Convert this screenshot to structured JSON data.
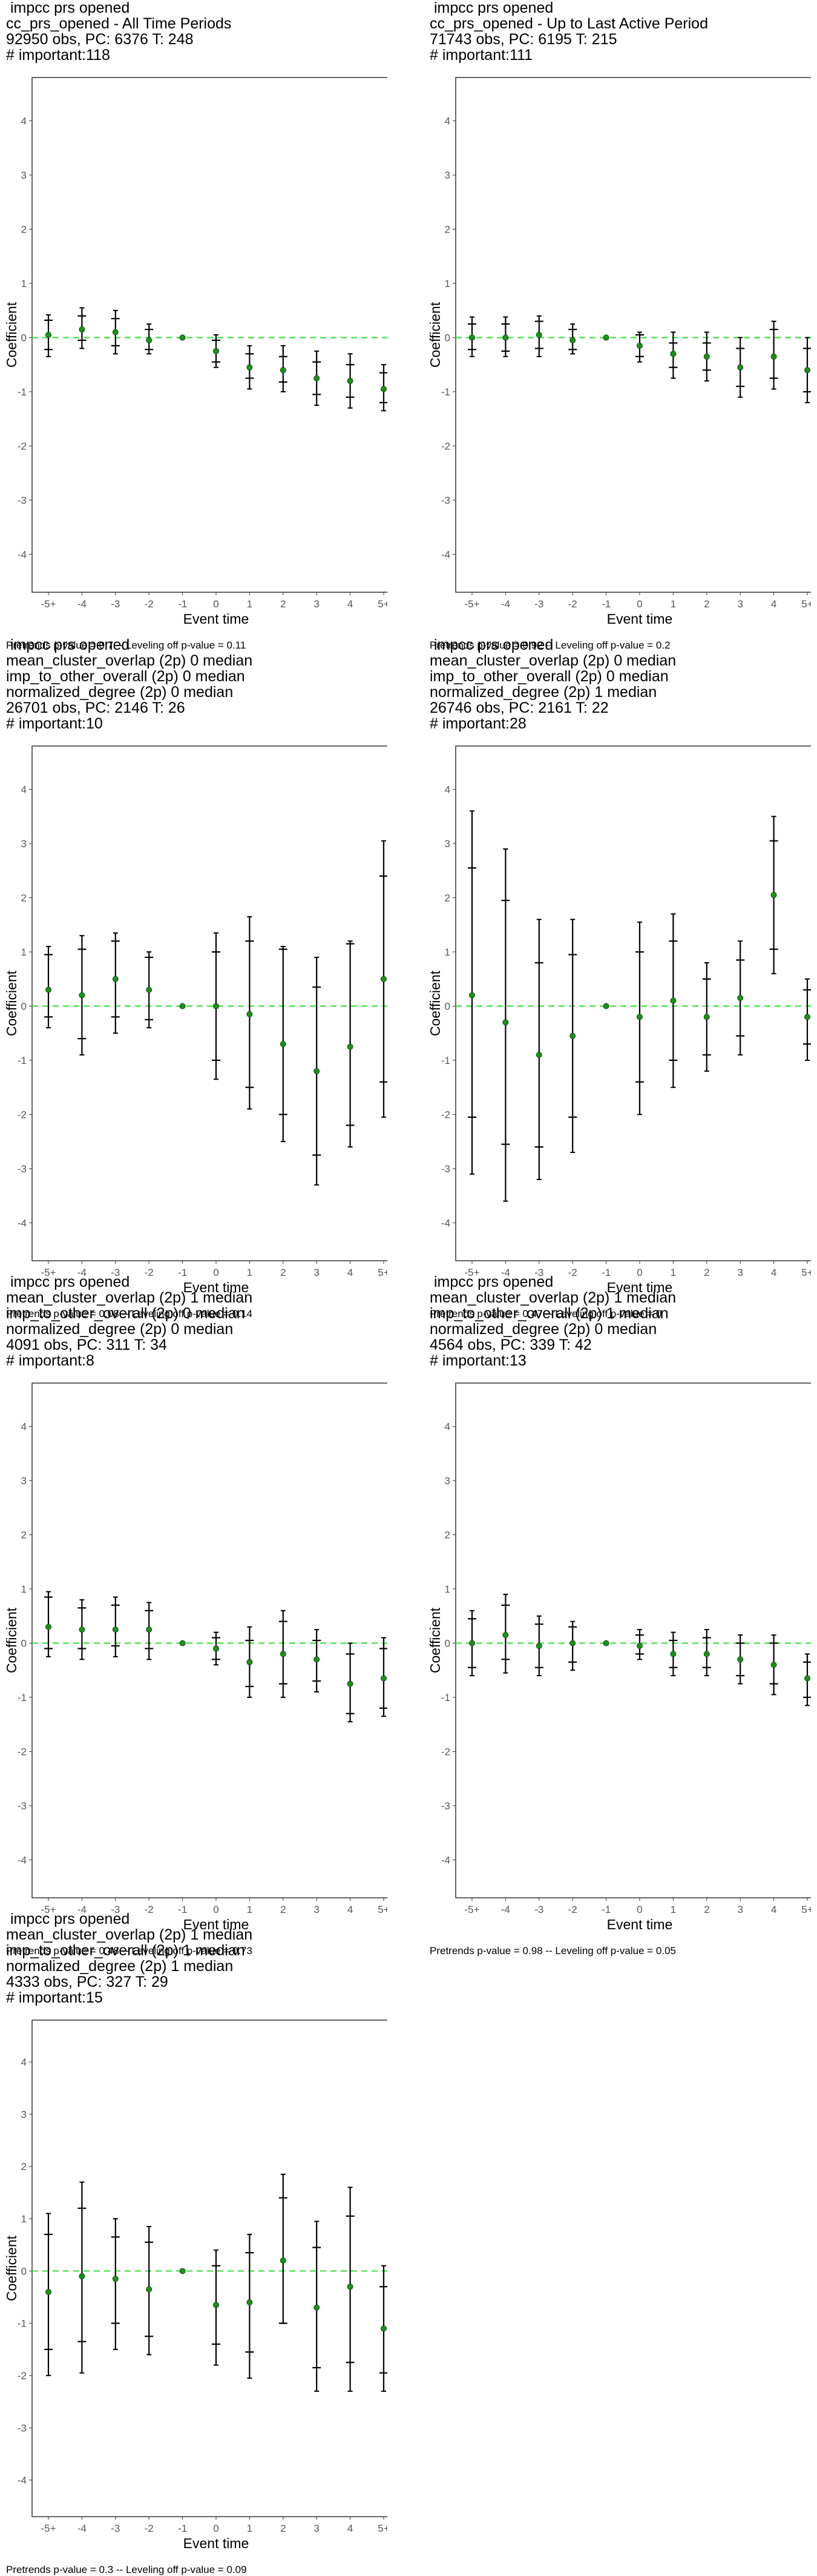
{
  "chart_data": [
    {
      "type": "scatter",
      "title_lines": [
        " impcc prs opened",
        "cc_prs_opened - All Time Periods",
        "92950 obs, PC: 6376 T: 248",
        "# important:118"
      ],
      "xlabel": "Event time",
      "ylabel": "Coefficient",
      "categories": [
        "-5+",
        "-4",
        "-3",
        "-2",
        "-1",
        "0",
        "1",
        "2",
        "3",
        "4",
        "5+"
      ],
      "ylim": [
        -4.7,
        4.8
      ],
      "yticks": [
        -4,
        -3,
        -2,
        -1,
        0,
        1,
        2,
        3,
        4
      ],
      "grid": false,
      "estimate": [
        0.05,
        0.15,
        0.1,
        -0.05,
        0.0,
        -0.25,
        -0.55,
        -0.6,
        -0.75,
        -0.8,
        -0.95
      ],
      "ci_inner": [
        [
          -0.22,
          0.32
        ],
        [
          -0.05,
          0.4
        ],
        [
          -0.15,
          0.35
        ],
        [
          -0.22,
          0.15
        ],
        [
          0.0,
          0.0
        ],
        [
          -0.45,
          -0.05
        ],
        [
          -0.75,
          -0.3
        ],
        [
          -0.82,
          -0.35
        ],
        [
          -1.05,
          -0.45
        ],
        [
          -1.1,
          -0.5
        ],
        [
          -1.2,
          -0.65
        ]
      ],
      "ci_outer": [
        [
          -0.35,
          0.42
        ],
        [
          -0.2,
          0.55
        ],
        [
          -0.3,
          0.5
        ],
        [
          -0.3,
          0.25
        ],
        [
          0.0,
          0.0
        ],
        [
          -0.55,
          0.05
        ],
        [
          -0.95,
          -0.15
        ],
        [
          -1.0,
          -0.15
        ],
        [
          -1.25,
          -0.25
        ],
        [
          -1.3,
          -0.3
        ],
        [
          -1.35,
          -0.5
        ]
      ],
      "caption": "Pretrends p-value = 0.7 -- Leveling off p-value = 0.11"
    },
    {
      "type": "scatter",
      "title_lines": [
        " impcc prs opened",
        "cc_prs_opened - Up to Last Active Period",
        "71743 obs, PC: 6195 T: 215",
        "# important:111"
      ],
      "xlabel": "Event time",
      "ylabel": "Coefficient",
      "categories": [
        "-5+",
        "-4",
        "-3",
        "-2",
        "-1",
        "0",
        "1",
        "2",
        "3",
        "4",
        "5+"
      ],
      "ylim": [
        -4.7,
        4.8
      ],
      "yticks": [
        -4,
        -3,
        -2,
        -1,
        0,
        1,
        2,
        3,
        4
      ],
      "grid": false,
      "estimate": [
        0.0,
        0.0,
        0.05,
        -0.05,
        0.0,
        -0.15,
        -0.3,
        -0.35,
        -0.55,
        -0.35,
        -0.6
      ],
      "ci_inner": [
        [
          -0.22,
          0.25
        ],
        [
          -0.25,
          0.25
        ],
        [
          -0.2,
          0.3
        ],
        [
          -0.22,
          0.15
        ],
        [
          0.0,
          0.0
        ],
        [
          -0.35,
          0.05
        ],
        [
          -0.55,
          -0.1
        ],
        [
          -0.6,
          -0.1
        ],
        [
          -0.9,
          -0.2
        ],
        [
          -0.75,
          0.15
        ],
        [
          -1.0,
          -0.2
        ]
      ],
      "ci_outer": [
        [
          -0.35,
          0.38
        ],
        [
          -0.35,
          0.38
        ],
        [
          -0.35,
          0.4
        ],
        [
          -0.3,
          0.25
        ],
        [
          0.0,
          0.0
        ],
        [
          -0.45,
          0.1
        ],
        [
          -0.75,
          0.1
        ],
        [
          -0.8,
          0.1
        ],
        [
          -1.1,
          0.0
        ],
        [
          -0.95,
          0.3
        ],
        [
          -1.2,
          0.0
        ]
      ],
      "caption": "Pretrends p-value = 0.92 -- Leveling off p-value = 0.2"
    },
    {
      "type": "scatter",
      "title_lines": [
        " impcc prs opened",
        "mean_cluster_overlap (2p) 0 median",
        "imp_to_other_overall (2p) 0 median",
        "normalized_degree (2p) 0 median",
        "26701 obs, PC: 2146 T: 26",
        "# important:10"
      ],
      "xlabel": "Event time",
      "ylabel": "Coefficient",
      "categories": [
        "-5+",
        "-4",
        "-3",
        "-2",
        "-1",
        "0",
        "1",
        "2",
        "3",
        "4",
        "5+"
      ],
      "ylim": [
        -4.7,
        4.8
      ],
      "yticks": [
        -4,
        -3,
        -2,
        -1,
        0,
        1,
        2,
        3,
        4
      ],
      "grid": false,
      "estimate": [
        0.3,
        0.2,
        0.5,
        0.3,
        0.0,
        0.0,
        -0.15,
        -0.7,
        -1.2,
        -0.75,
        0.5
      ],
      "ci_inner": [
        [
          -0.2,
          0.95
        ],
        [
          -0.6,
          1.05
        ],
        [
          -0.2,
          1.2
        ],
        [
          -0.25,
          0.9
        ],
        [
          0.0,
          0.0
        ],
        [
          -1.0,
          1.0
        ],
        [
          -1.5,
          1.2
        ],
        [
          -2.0,
          1.05
        ],
        [
          -2.75,
          0.35
        ],
        [
          -2.2,
          1.15
        ],
        [
          -1.4,
          2.4
        ]
      ],
      "ci_outer": [
        [
          -0.4,
          1.1
        ],
        [
          -0.9,
          1.3
        ],
        [
          -0.5,
          1.35
        ],
        [
          -0.4,
          1.0
        ],
        [
          0.0,
          0.0
        ],
        [
          -1.35,
          1.35
        ],
        [
          -1.9,
          1.65
        ],
        [
          -2.5,
          1.1
        ],
        [
          -3.3,
          0.9
        ],
        [
          -2.6,
          1.2
        ],
        [
          -2.05,
          3.05
        ]
      ],
      "caption": "Pretrends p-value = 0.08 -- Leveling off p-value = 0.14"
    },
    {
      "type": "scatter",
      "title_lines": [
        " impcc prs opened",
        "mean_cluster_overlap (2p) 0 median",
        "imp_to_other_overall (2p) 0 median",
        "normalized_degree (2p) 1 median",
        "26746 obs, PC: 2161 T: 22",
        "# important:28"
      ],
      "xlabel": "Event time",
      "ylabel": "Coefficient",
      "categories": [
        "-5+",
        "-4",
        "-3",
        "-2",
        "-1",
        "0",
        "1",
        "2",
        "3",
        "4",
        "5+"
      ],
      "ylim": [
        -4.7,
        4.8
      ],
      "yticks": [
        -4,
        -3,
        -2,
        -1,
        0,
        1,
        2,
        3,
        4
      ],
      "grid": false,
      "estimate": [
        0.2,
        -0.3,
        -0.9,
        -0.55,
        0.0,
        -0.2,
        0.1,
        -0.2,
        0.15,
        2.05,
        -0.2
      ],
      "ci_inner": [
        [
          -2.05,
          2.55
        ],
        [
          -2.55,
          1.95
        ],
        [
          -2.6,
          0.8
        ],
        [
          -2.05,
          0.95
        ],
        [
          0.0,
          0.0
        ],
        [
          -1.4,
          1.0
        ],
        [
          -1.0,
          1.2
        ],
        [
          -0.9,
          0.5
        ],
        [
          -0.55,
          0.85
        ],
        [
          1.05,
          3.05
        ],
        [
          -0.7,
          0.3
        ]
      ],
      "ci_outer": [
        [
          -3.1,
          3.6
        ],
        [
          -3.6,
          2.9
        ],
        [
          -3.2,
          1.6
        ],
        [
          -2.7,
          1.6
        ],
        [
          0.0,
          0.0
        ],
        [
          -2.0,
          1.55
        ],
        [
          -1.5,
          1.7
        ],
        [
          -1.2,
          0.8
        ],
        [
          -0.9,
          1.2
        ],
        [
          0.6,
          3.5
        ],
        [
          -1.0,
          0.5
        ]
      ],
      "caption": "Pretrends p-value = 0.47 -- Leveling off p-value = 0"
    },
    {
      "type": "scatter",
      "title_lines": [
        " impcc prs opened",
        "mean_cluster_overlap (2p) 1 median",
        "imp_to_other_overall (2p) 0 median",
        "normalized_degree (2p) 0 median",
        "4091 obs, PC: 311 T: 34",
        "# important:8"
      ],
      "xlabel": "Event time",
      "ylabel": "Coefficient",
      "categories": [
        "-5+",
        "-4",
        "-3",
        "-2",
        "-1",
        "0",
        "1",
        "2",
        "3",
        "4",
        "5+"
      ],
      "ylim": [
        -4.7,
        4.8
      ],
      "yticks": [
        -4,
        -3,
        -2,
        -1,
        0,
        1,
        2,
        3,
        4
      ],
      "grid": false,
      "estimate": [
        0.3,
        0.25,
        0.25,
        0.25,
        0.0,
        -0.1,
        -0.35,
        -0.2,
        -0.3,
        -0.75,
        -0.65
      ],
      "ci_inner": [
        [
          -0.1,
          0.85
        ],
        [
          -0.1,
          0.65
        ],
        [
          -0.05,
          0.7
        ],
        [
          -0.1,
          0.6
        ],
        [
          0.0,
          0.0
        ],
        [
          -0.3,
          0.1
        ],
        [
          -0.8,
          0.05
        ],
        [
          -0.75,
          0.4
        ],
        [
          -0.7,
          0.05
        ],
        [
          -1.3,
          -0.2
        ],
        [
          -1.2,
          -0.1
        ]
      ],
      "ci_outer": [
        [
          -0.25,
          0.95
        ],
        [
          -0.3,
          0.8
        ],
        [
          -0.25,
          0.85
        ],
        [
          -0.3,
          0.75
        ],
        [
          0.0,
          0.0
        ],
        [
          -0.4,
          0.2
        ],
        [
          -1.0,
          0.3
        ],
        [
          -1.0,
          0.6
        ],
        [
          -0.9,
          0.25
        ],
        [
          -1.45,
          0.0
        ],
        [
          -1.35,
          0.1
        ]
      ],
      "caption": "Pretrends p-value = 0.48 -- Leveling off p-value = 0.73"
    },
    {
      "type": "scatter",
      "title_lines": [
        " impcc prs opened",
        "mean_cluster_overlap (2p) 1 median",
        "imp_to_other_overall (2p) 1 median",
        "normalized_degree (2p) 0 median",
        "4564 obs, PC: 339 T: 42",
        "# important:13"
      ],
      "xlabel": "Event time",
      "ylabel": "Coefficient",
      "categories": [
        "-5+",
        "-4",
        "-3",
        "-2",
        "-1",
        "0",
        "1",
        "2",
        "3",
        "4",
        "5+"
      ],
      "ylim": [
        -4.7,
        4.8
      ],
      "yticks": [
        -4,
        -3,
        -2,
        -1,
        0,
        1,
        2,
        3,
        4
      ],
      "grid": false,
      "estimate": [
        0.0,
        0.15,
        -0.05,
        0.0,
        0.0,
        -0.05,
        -0.2,
        -0.2,
        -0.3,
        -0.4,
        -0.65
      ],
      "ci_inner": [
        [
          -0.45,
          0.45
        ],
        [
          -0.3,
          0.7
        ],
        [
          -0.45,
          0.35
        ],
        [
          -0.35,
          0.3
        ],
        [
          0.0,
          0.0
        ],
        [
          -0.2,
          0.15
        ],
        [
          -0.45,
          0.05
        ],
        [
          -0.45,
          0.1
        ],
        [
          -0.6,
          0.0
        ],
        [
          -0.75,
          0.0
        ],
        [
          -1.0,
          -0.35
        ]
      ],
      "ci_outer": [
        [
          -0.6,
          0.6
        ],
        [
          -0.55,
          0.9
        ],
        [
          -0.6,
          0.5
        ],
        [
          -0.5,
          0.4
        ],
        [
          0.0,
          0.0
        ],
        [
          -0.3,
          0.25
        ],
        [
          -0.6,
          0.2
        ],
        [
          -0.6,
          0.25
        ],
        [
          -0.75,
          0.15
        ],
        [
          -0.95,
          0.15
        ],
        [
          -1.15,
          -0.2
        ]
      ],
      "caption": "Pretrends p-value = 0.98 -- Leveling off p-value = 0.05"
    },
    {
      "type": "scatter",
      "title_lines": [
        " impcc prs opened",
        "mean_cluster_overlap (2p) 1 median",
        "imp_to_other_overall (2p) 1 median",
        "normalized_degree (2p) 1 median",
        "4333 obs, PC: 327 T: 29",
        "# important:15"
      ],
      "xlabel": "Event time",
      "ylabel": "Coefficient",
      "categories": [
        "-5+",
        "-4",
        "-3",
        "-2",
        "-1",
        "0",
        "1",
        "2",
        "3",
        "4",
        "5+"
      ],
      "ylim": [
        -4.7,
        4.8
      ],
      "yticks": [
        -4,
        -3,
        -2,
        -1,
        0,
        1,
        2,
        3,
        4
      ],
      "grid": false,
      "estimate": [
        -0.4,
        -0.1,
        -0.15,
        -0.35,
        0.0,
        -0.65,
        -0.6,
        0.2,
        -0.7,
        -0.3,
        -1.1
      ],
      "ci_inner": [
        [
          -1.5,
          0.7
        ],
        [
          -1.35,
          1.2
        ],
        [
          -1.0,
          0.65
        ],
        [
          -1.25,
          0.55
        ],
        [
          0.0,
          0.0
        ],
        [
          -1.4,
          0.1
        ],
        [
          -1.55,
          0.35
        ],
        [
          -1.0,
          1.4
        ],
        [
          -1.85,
          0.45
        ],
        [
          -1.75,
          1.05
        ],
        [
          -1.95,
          -0.3
        ]
      ],
      "ci_outer": [
        [
          -2.0,
          1.1
        ],
        [
          -1.95,
          1.7
        ],
        [
          -1.5,
          1.0
        ],
        [
          -1.6,
          0.85
        ],
        [
          0.0,
          0.0
        ],
        [
          -1.8,
          0.4
        ],
        [
          -2.05,
          0.7
        ],
        [
          -1.0,
          1.85
        ],
        [
          -2.3,
          0.95
        ],
        [
          -2.3,
          1.6
        ],
        [
          -2.3,
          0.1
        ]
      ],
      "caption": "Pretrends p-value = 0.3 -- Leveling off p-value = 0.09"
    }
  ],
  "colors": {
    "point": "#1f8f1f",
    "zero_line": "#44dd44",
    "error_bar": "#000000",
    "panel_border": "#333333",
    "tick_label": "#555555"
  }
}
